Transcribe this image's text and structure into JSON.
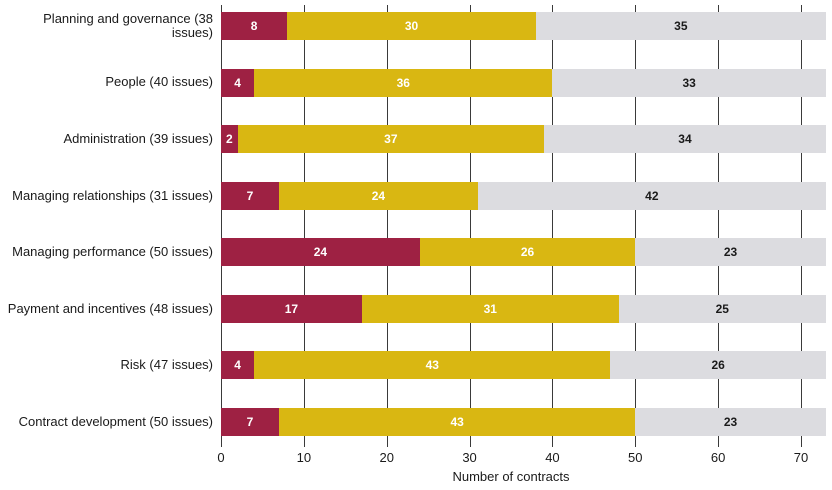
{
  "chart_data": {
    "type": "bar",
    "orientation": "horizontal",
    "stacked": true,
    "title": "",
    "xlabel": "Number of contracts",
    "ylabel": "",
    "xlim": [
      0,
      70
    ],
    "xticks": [
      0,
      10,
      20,
      30,
      40,
      50,
      60,
      70
    ],
    "grid": true,
    "legend": "none",
    "categories": [
      "Planning and governance (38 issues)",
      "People (40 issues)",
      "Administration (39 issues)",
      "Managing relationships (31 issues)",
      "Managing performance (50 issues)",
      "Payment and incentives (48 issues)",
      "Risk (47 issues)",
      "Contract development (50 issues)"
    ],
    "series": [
      {
        "name": "segment-dark-red",
        "color": "#9e2143",
        "value_text_color": "#ffffff",
        "values": [
          8,
          4,
          2,
          7,
          24,
          17,
          4,
          7
        ]
      },
      {
        "name": "segment-yellow",
        "color": "#d9b712",
        "value_text_color": "#ffffff",
        "values": [
          30,
          36,
          37,
          24,
          26,
          31,
          43,
          43
        ]
      },
      {
        "name": "segment-grey",
        "color": "#dcdce0",
        "value_text_color": "#1a1a1a",
        "values": [
          35,
          33,
          34,
          42,
          23,
          25,
          26,
          23
        ]
      }
    ]
  },
  "colors": {
    "background": "#ffffff",
    "gridline": "#3a3a3a",
    "label_text": "#1a1a1a"
  }
}
